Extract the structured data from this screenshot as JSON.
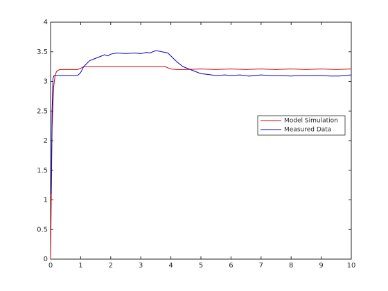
{
  "chart_data": {
    "type": "line",
    "series": [
      {
        "name": "Model Simulation",
        "color": "#d40000",
        "x": [
          0,
          0.05,
          0.1,
          0.15,
          0.2,
          0.3,
          0.5,
          0.9,
          1.0,
          1.1,
          1.3,
          2,
          3,
          3.8,
          3.9,
          4.0,
          4.2,
          4.5,
          5,
          5.5,
          6,
          6.5,
          7,
          7.5,
          8,
          8.5,
          9,
          9.5,
          10
        ],
        "values": [
          0,
          2.2,
          2.9,
          3.1,
          3.17,
          3.2,
          3.2,
          3.2,
          3.22,
          3.25,
          3.25,
          3.25,
          3.25,
          3.25,
          3.23,
          3.21,
          3.2,
          3.2,
          3.21,
          3.2,
          3.21,
          3.2,
          3.21,
          3.2,
          3.21,
          3.2,
          3.21,
          3.2,
          3.21
        ]
      },
      {
        "name": "Measured Data",
        "color": "#0000c8",
        "x": [
          0.02,
          0.05,
          0.08,
          0.12,
          0.2,
          0.5,
          0.9,
          1.0,
          1.1,
          1.2,
          1.3,
          1.5,
          1.7,
          1.8,
          1.9,
          2.0,
          2.2,
          2.5,
          2.8,
          3.0,
          3.2,
          3.3,
          3.5,
          3.7,
          3.9,
          4.0,
          4.2,
          4.4,
          4.7,
          5.0,
          5.2,
          5.5,
          5.8,
          6.0,
          6.3,
          6.6,
          7.0,
          7.3,
          7.6,
          8.0,
          8.3,
          8.6,
          9.0,
          9.3,
          9.6,
          10
        ],
        "values": [
          1.1,
          2.5,
          3.05,
          3.1,
          3.1,
          3.1,
          3.1,
          3.15,
          3.25,
          3.3,
          3.35,
          3.39,
          3.43,
          3.45,
          3.43,
          3.46,
          3.48,
          3.47,
          3.48,
          3.47,
          3.49,
          3.48,
          3.52,
          3.5,
          3.48,
          3.43,
          3.33,
          3.25,
          3.19,
          3.13,
          3.12,
          3.1,
          3.11,
          3.1,
          3.11,
          3.09,
          3.11,
          3.1,
          3.1,
          3.09,
          3.1,
          3.1,
          3.1,
          3.09,
          3.09,
          3.11
        ]
      }
    ],
    "xlim": [
      0,
      10
    ],
    "xticks": [
      0,
      1,
      2,
      3,
      4,
      5,
      6,
      7,
      8,
      9,
      10
    ],
    "ylim": [
      0,
      4
    ],
    "yticks": [
      0,
      0.5,
      1,
      1.5,
      2,
      2.5,
      3,
      3.5,
      4
    ],
    "grid": false,
    "legend_position": "right"
  }
}
